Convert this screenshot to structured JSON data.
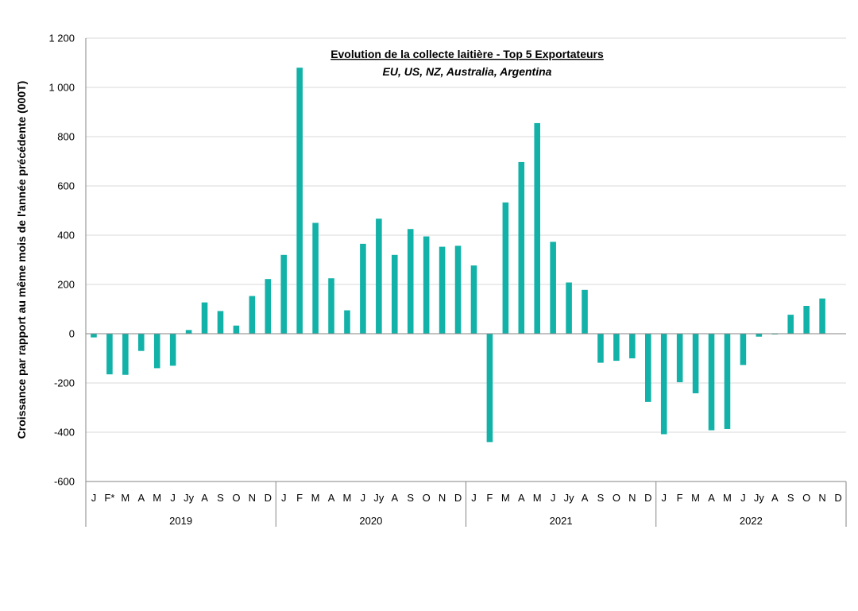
{
  "chart_data": {
    "type": "bar",
    "title": "Evolution de la collecte laitière - Top 5 Exportateurs",
    "subtitle": "EU, US, NZ, Australia, Argentina",
    "xlabel": "",
    "ylabel": "Croissance par rapport au même mois de l'année précédente (000T)",
    "ylim": [
      -600,
      1200
    ],
    "yticks": [
      -600,
      -400,
      -200,
      0,
      200,
      400,
      600,
      800,
      1000,
      1200
    ],
    "ytick_labels": [
      "-600",
      "-400",
      "-200",
      "0",
      "200",
      "400",
      "600",
      "800",
      "1 000",
      "1 200"
    ],
    "grid": true,
    "bar_color": "#12B2A8",
    "years": [
      {
        "label": "2019",
        "months": [
          "J",
          "F*",
          "M",
          "A",
          "M",
          "J",
          "Jy",
          "A",
          "S",
          "O",
          "N",
          "D"
        ]
      },
      {
        "label": "2020",
        "months": [
          "J",
          "F",
          "M",
          "A",
          "M",
          "J",
          "Jy",
          "A",
          "S",
          "O",
          "N",
          "D"
        ]
      },
      {
        "label": "2021",
        "months": [
          "J",
          "F",
          "M",
          "A",
          "M",
          "J",
          "Jy",
          "A",
          "S",
          "O",
          "N",
          "D"
        ]
      },
      {
        "label": "2022",
        "months": [
          "J",
          "F",
          "M",
          "A",
          "M",
          "J",
          "Jy",
          "A",
          "S",
          "O",
          "N",
          "D"
        ]
      }
    ],
    "values": [
      -15,
      -165,
      -167,
      -70,
      -140,
      -130,
      15,
      127,
      92,
      33,
      153,
      222,
      320,
      1080,
      450,
      225,
      95,
      365,
      467,
      320,
      425,
      395,
      353,
      357,
      277,
      -440,
      533,
      697,
      855,
      373,
      208,
      178,
      -118,
      -110,
      -100,
      -277,
      -408,
      -197,
      -242,
      -392,
      -387,
      -127,
      -12,
      -3,
      77,
      113,
      143,
      null
    ]
  }
}
